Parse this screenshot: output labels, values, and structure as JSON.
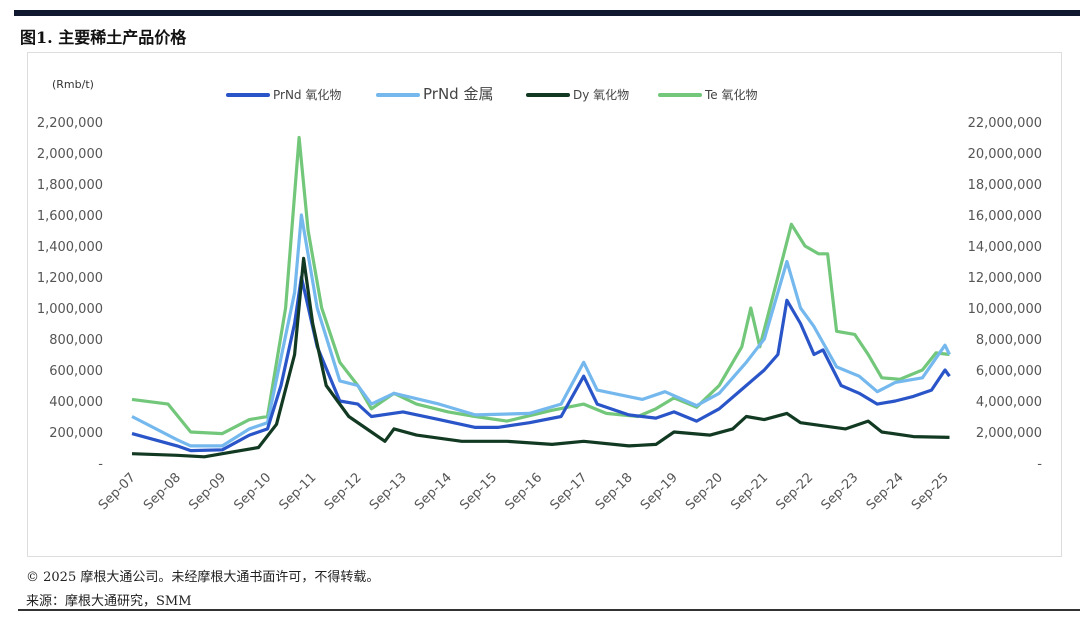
{
  "header": {
    "title": "图1. 主要稀土产品价格"
  },
  "footer": {
    "copyright": "© 2025 摩根大通公司。未经摩根大通书面许可，不得转载。",
    "source": "来源：摩根大通研究，SMM"
  },
  "chart_data": {
    "type": "line",
    "title": "图1. 主要稀土产品价格",
    "ylabel": "(Rmb/t)",
    "ylim": [
      0,
      2200000
    ],
    "y2lim": [
      0,
      22000000
    ],
    "yticks": [
      "-",
      "200,000",
      "400,000",
      "600,000",
      "800,000",
      "1,000,000",
      "1,200,000",
      "1,400,000",
      "1,600,000",
      "1,800,000",
      "2,000,000",
      "2,200,000"
    ],
    "y2ticks": [
      "-",
      "2,000,000",
      "4,000,000",
      "6,000,000",
      "8,000,000",
      "10,000,000",
      "12,000,000",
      "14,000,000",
      "16,000,000",
      "18,000,000",
      "20,000,000",
      "22,000,000"
    ],
    "xticks": [
      "Sep-07",
      "Sep-08",
      "Sep-09",
      "Sep-10",
      "Sep-11",
      "Sep-12",
      "Sep-13",
      "Sep-14",
      "Sep-15",
      "Sep-16",
      "Sep-17",
      "Sep-18",
      "Sep-19",
      "Sep-20",
      "Sep-21",
      "Sep-22",
      "Sep-23",
      "Sep-24",
      "Sep-25"
    ],
    "legend_position": "top",
    "series": [
      {
        "name": "PrNd 氧化物",
        "axis": "left",
        "color": "#2a55c8",
        "points": [
          [
            2007.7,
            190000
          ],
          [
            2008.7,
            110000
          ],
          [
            2009.0,
            80000
          ],
          [
            2009.7,
            85000
          ],
          [
            2010.3,
            180000
          ],
          [
            2010.7,
            220000
          ],
          [
            2011.0,
            500000
          ],
          [
            2011.3,
            900000
          ],
          [
            2011.45,
            1200000
          ],
          [
            2011.8,
            750000
          ],
          [
            2012.3,
            400000
          ],
          [
            2012.7,
            380000
          ],
          [
            2013.0,
            300000
          ],
          [
            2013.7,
            330000
          ],
          [
            2014.5,
            280000
          ],
          [
            2015.3,
            230000
          ],
          [
            2015.8,
            230000
          ],
          [
            2016.5,
            260000
          ],
          [
            2017.2,
            300000
          ],
          [
            2017.7,
            560000
          ],
          [
            2018.0,
            380000
          ],
          [
            2018.7,
            310000
          ],
          [
            2019.3,
            290000
          ],
          [
            2019.7,
            330000
          ],
          [
            2020.2,
            270000
          ],
          [
            2020.7,
            350000
          ],
          [
            2021.3,
            500000
          ],
          [
            2021.7,
            600000
          ],
          [
            2022.0,
            700000
          ],
          [
            2022.2,
            1050000
          ],
          [
            2022.5,
            900000
          ],
          [
            2022.8,
            700000
          ],
          [
            2023.0,
            730000
          ],
          [
            2023.4,
            500000
          ],
          [
            2023.8,
            450000
          ],
          [
            2024.2,
            380000
          ],
          [
            2024.6,
            400000
          ],
          [
            2025.0,
            430000
          ],
          [
            2025.4,
            470000
          ],
          [
            2025.7,
            600000
          ],
          [
            2025.8,
            560000
          ]
        ]
      },
      {
        "name": "PrNd 金属",
        "axis": "left",
        "color": "#74b8ee",
        "points": [
          [
            2007.7,
            300000
          ],
          [
            2008.7,
            150000
          ],
          [
            2009.0,
            110000
          ],
          [
            2009.7,
            110000
          ],
          [
            2010.3,
            220000
          ],
          [
            2010.7,
            260000
          ],
          [
            2011.3,
            1100000
          ],
          [
            2011.45,
            1600000
          ],
          [
            2011.8,
            1000000
          ],
          [
            2012.3,
            530000
          ],
          [
            2012.7,
            500000
          ],
          [
            2013.0,
            380000
          ],
          [
            2013.5,
            450000
          ],
          [
            2014.5,
            380000
          ],
          [
            2015.3,
            310000
          ],
          [
            2016.5,
            320000
          ],
          [
            2017.2,
            380000
          ],
          [
            2017.7,
            650000
          ],
          [
            2018.0,
            470000
          ],
          [
            2019.0,
            410000
          ],
          [
            2019.5,
            460000
          ],
          [
            2020.2,
            370000
          ],
          [
            2020.7,
            450000
          ],
          [
            2021.3,
            650000
          ],
          [
            2021.7,
            800000
          ],
          [
            2022.2,
            1300000
          ],
          [
            2022.5,
            1000000
          ],
          [
            2022.8,
            880000
          ],
          [
            2023.3,
            620000
          ],
          [
            2023.8,
            560000
          ],
          [
            2024.2,
            460000
          ],
          [
            2024.6,
            520000
          ],
          [
            2025.2,
            550000
          ],
          [
            2025.7,
            760000
          ],
          [
            2025.8,
            700000
          ]
        ]
      },
      {
        "name": "Dy 氧化物",
        "axis": "left",
        "color": "#123a22",
        "points": [
          [
            2007.7,
            60000
          ],
          [
            2008.7,
            50000
          ],
          [
            2009.3,
            40000
          ],
          [
            2009.7,
            60000
          ],
          [
            2010.5,
            100000
          ],
          [
            2010.9,
            250000
          ],
          [
            2011.3,
            700000
          ],
          [
            2011.5,
            1320000
          ],
          [
            2011.7,
            900000
          ],
          [
            2012.0,
            500000
          ],
          [
            2012.5,
            300000
          ],
          [
            2013.0,
            200000
          ],
          [
            2013.3,
            140000
          ],
          [
            2013.5,
            220000
          ],
          [
            2014.0,
            180000
          ],
          [
            2015.0,
            140000
          ],
          [
            2016.0,
            140000
          ],
          [
            2017.0,
            120000
          ],
          [
            2017.7,
            140000
          ],
          [
            2018.7,
            110000
          ],
          [
            2019.3,
            120000
          ],
          [
            2019.7,
            200000
          ],
          [
            2020.5,
            180000
          ],
          [
            2021.0,
            220000
          ],
          [
            2021.3,
            300000
          ],
          [
            2021.7,
            280000
          ],
          [
            2022.2,
            320000
          ],
          [
            2022.5,
            260000
          ],
          [
            2023.0,
            240000
          ],
          [
            2023.5,
            220000
          ],
          [
            2024.0,
            270000
          ],
          [
            2024.3,
            200000
          ],
          [
            2025.0,
            170000
          ],
          [
            2025.8,
            165000
          ]
        ]
      },
      {
        "name": "Te 氧化物",
        "axis": "right",
        "color": "#72c77a",
        "points": [
          [
            2007.7,
            4100000
          ],
          [
            2008.5,
            3800000
          ],
          [
            2009.0,
            2000000
          ],
          [
            2009.7,
            1900000
          ],
          [
            2010.3,
            2800000
          ],
          [
            2010.7,
            3000000
          ],
          [
            2011.1,
            10000000
          ],
          [
            2011.4,
            21000000
          ],
          [
            2011.6,
            15000000
          ],
          [
            2011.9,
            10000000
          ],
          [
            2012.3,
            6500000
          ],
          [
            2012.7,
            5000000
          ],
          [
            2013.0,
            3500000
          ],
          [
            2013.5,
            4500000
          ],
          [
            2014.0,
            3800000
          ],
          [
            2014.7,
            3300000
          ],
          [
            2015.3,
            3000000
          ],
          [
            2016.0,
            2700000
          ],
          [
            2017.0,
            3400000
          ],
          [
            2017.7,
            3800000
          ],
          [
            2018.2,
            3200000
          ],
          [
            2018.9,
            3000000
          ],
          [
            2019.3,
            3500000
          ],
          [
            2019.7,
            4200000
          ],
          [
            2020.2,
            3600000
          ],
          [
            2020.7,
            5000000
          ],
          [
            2021.2,
            7500000
          ],
          [
            2021.4,
            10000000
          ],
          [
            2021.6,
            7500000
          ],
          [
            2022.0,
            12000000
          ],
          [
            2022.3,
            15400000
          ],
          [
            2022.6,
            14000000
          ],
          [
            2022.9,
            13500000
          ],
          [
            2023.1,
            13500000
          ],
          [
            2023.3,
            8500000
          ],
          [
            2023.7,
            8300000
          ],
          [
            2024.0,
            7000000
          ],
          [
            2024.3,
            5500000
          ],
          [
            2024.7,
            5400000
          ],
          [
            2025.2,
            6000000
          ],
          [
            2025.5,
            7100000
          ],
          [
            2025.8,
            7000000
          ]
        ]
      }
    ]
  }
}
